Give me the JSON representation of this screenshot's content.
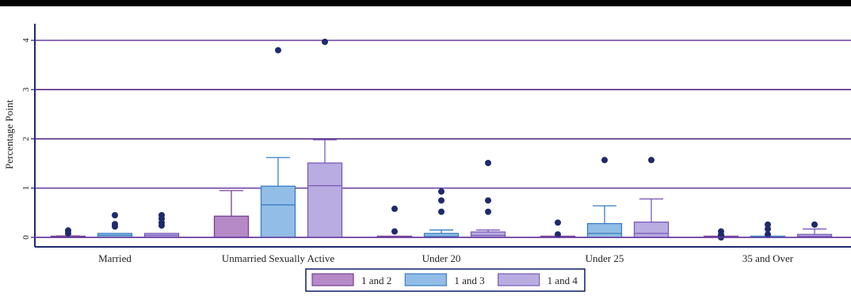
{
  "chart_data": {
    "type": "boxplot",
    "title": "",
    "xlabel": "",
    "ylabel": "Percentage Point",
    "ylim": [
      0,
      4
    ],
    "yticks": [
      "0",
      "1",
      "2",
      "3",
      "4"
    ],
    "grid": true,
    "legend_position": "bottom-center",
    "categories": [
      "Married",
      "Unmarried Sexually Active",
      "Under 20",
      "Under 25",
      "35 and Over"
    ],
    "series": [
      {
        "name": "1 and 2",
        "color": "#b58ac6",
        "stroke": "#7a3e95",
        "boxes": [
          {
            "min": 0,
            "q1": 0,
            "median": 0.01,
            "q3": 0.02,
            "max": 0.03,
            "outliers": [
              0.08,
              0.14
            ]
          },
          {
            "min": 0,
            "q1": 0,
            "median": 0,
            "q3": 0.43,
            "max": 0.95,
            "outliers": []
          },
          {
            "min": 0,
            "q1": 0,
            "median": 0,
            "q3": 0,
            "max": 0,
            "outliers": [
              0.12,
              0.58
            ]
          },
          {
            "min": 0,
            "q1": 0,
            "median": 0,
            "q3": 0,
            "max": 0,
            "outliers": [
              0.06,
              0.3
            ]
          },
          {
            "min": 0,
            "q1": 0,
            "median": 0,
            "q3": 0,
            "max": 0,
            "outliers": [
              0.0,
              0.05,
              0.12
            ]
          }
        ]
      },
      {
        "name": "1 and 3",
        "color": "#92bde6",
        "stroke": "#3a7ec0",
        "boxes": [
          {
            "min": 0,
            "q1": 0,
            "median": 0.04,
            "q3": 0.08,
            "max": 0.08,
            "outliers": [
              0.22,
              0.27,
              0.45
            ]
          },
          {
            "min": 0,
            "q1": 0,
            "median": 0.66,
            "q3": 1.04,
            "max": 1.62,
            "outliers": [
              3.8
            ]
          },
          {
            "min": 0,
            "q1": 0,
            "median": 0.02,
            "q3": 0.08,
            "max": 0.15,
            "outliers": [
              0.52,
              0.75,
              0.93
            ]
          },
          {
            "min": 0,
            "q1": 0,
            "median": 0.08,
            "q3": 0.28,
            "max": 0.64,
            "outliers": [
              1.57
            ]
          },
          {
            "min": 0,
            "q1": 0,
            "median": 0,
            "q3": 0.01,
            "max": 0.01,
            "outliers": [
              0.06,
              0.17,
              0.26
            ]
          }
        ]
      },
      {
        "name": "1 and 4",
        "color": "#b9ace0",
        "stroke": "#7a5ab8",
        "boxes": [
          {
            "min": 0,
            "q1": 0,
            "median": 0.04,
            "q3": 0.08,
            "max": 0.08,
            "outliers": [
              0.24,
              0.3,
              0.38,
              0.45
            ]
          },
          {
            "min": 0,
            "q1": 0,
            "median": 1.05,
            "q3": 1.51,
            "max": 1.98,
            "outliers": [
              3.97
            ]
          },
          {
            "min": 0,
            "q1": 0,
            "median": 0.04,
            "q3": 0.11,
            "max": 0.15,
            "outliers": [
              0.52,
              0.75,
              1.51
            ]
          },
          {
            "min": 0,
            "q1": 0,
            "median": 0.08,
            "q3": 0.31,
            "max": 0.78,
            "outliers": [
              1.57
            ]
          },
          {
            "min": 0,
            "q1": 0,
            "median": 0.02,
            "q3": 0.06,
            "max": 0.17,
            "outliers": [
              0.26
            ]
          }
        ]
      }
    ]
  }
}
